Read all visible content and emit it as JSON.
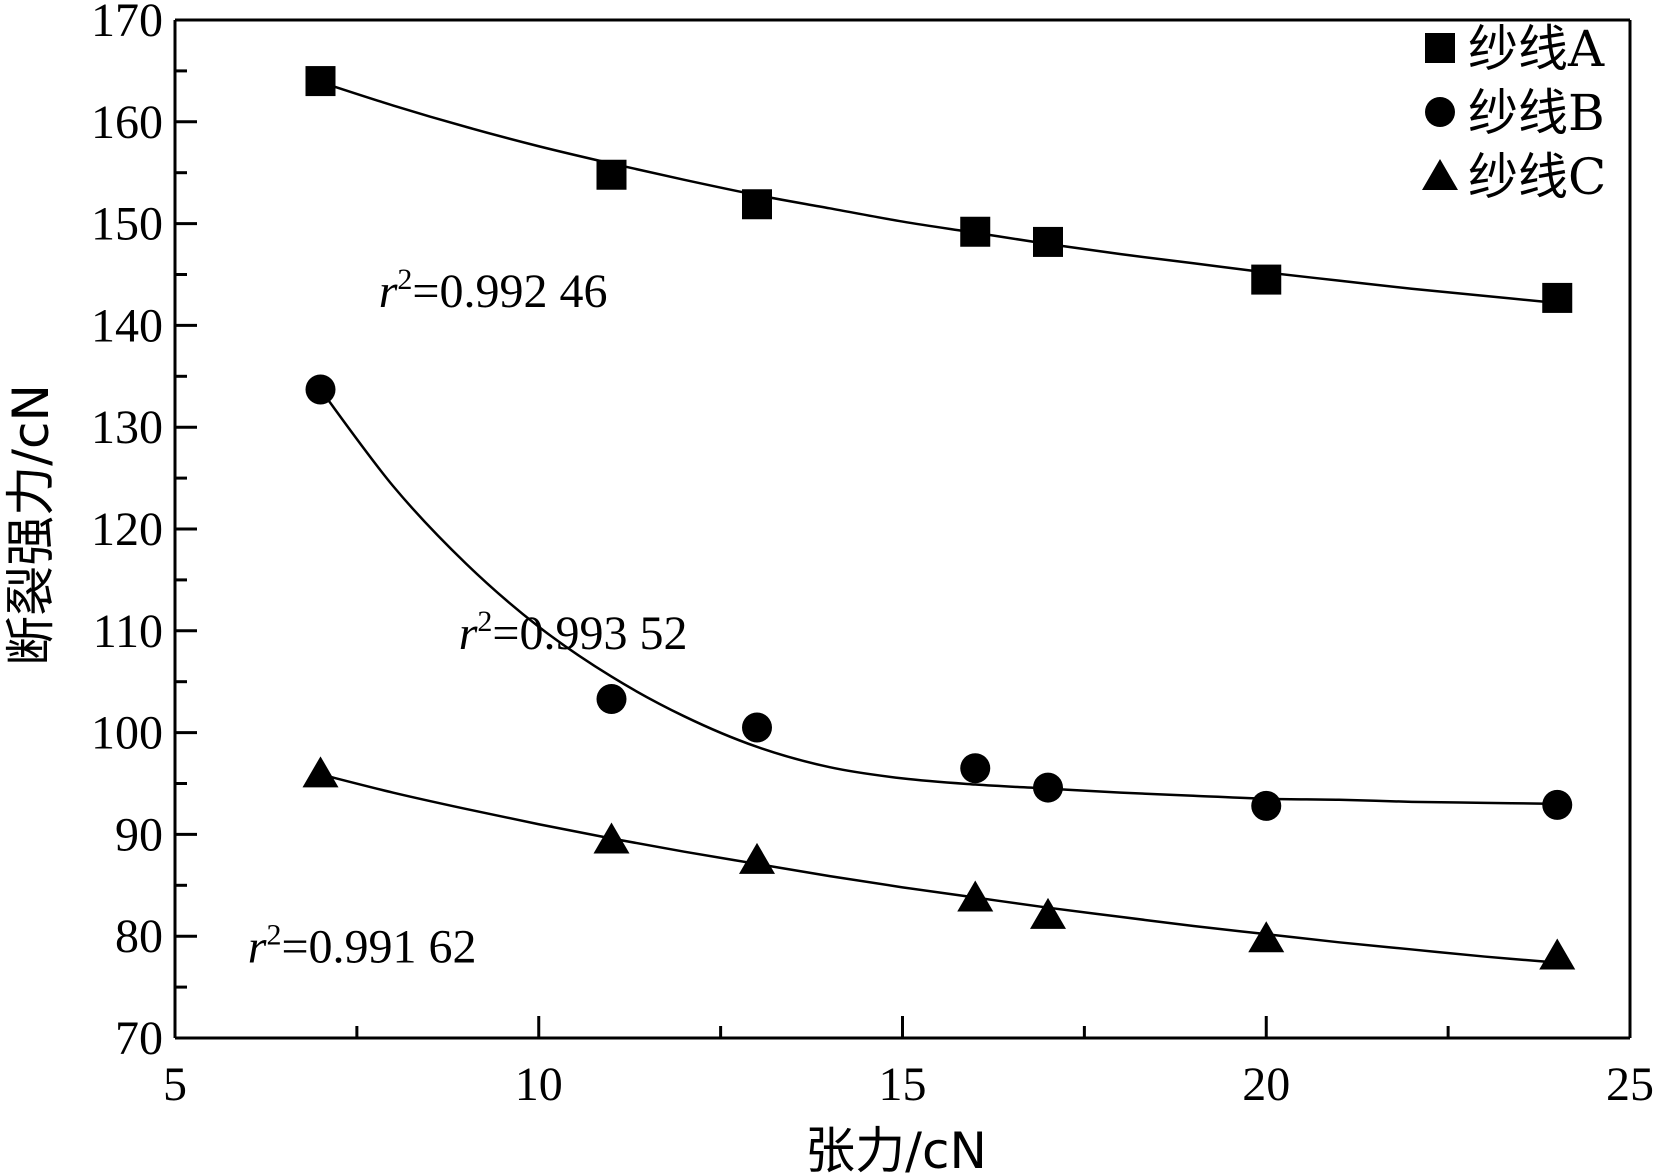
{
  "chart_data": {
    "type": "scatter",
    "xlabel": "张力/cN",
    "ylabel": "断裂强力/cN",
    "xlim": [
      5,
      25
    ],
    "ylim": [
      70,
      170
    ],
    "x_ticks": [
      5,
      10,
      15,
      20,
      25
    ],
    "y_ticks": [
      70,
      80,
      90,
      100,
      110,
      120,
      130,
      140,
      150,
      160,
      170
    ],
    "x": [
      7,
      11,
      13,
      16,
      17,
      20,
      24
    ],
    "grid": false,
    "legend_position": "top-right",
    "series": [
      {
        "name": "纱线A",
        "marker": "square",
        "values": [
          164.0,
          154.8,
          151.9,
          149.2,
          148.2,
          144.5,
          142.7
        ],
        "fit": [
          [
            7,
            163.9
          ],
          [
            8,
            161.6
          ],
          [
            9,
            159.5
          ],
          [
            10,
            157.6
          ],
          [
            11,
            155.9
          ],
          [
            12,
            154.3
          ],
          [
            13,
            152.8
          ],
          [
            14,
            151.5
          ],
          [
            15,
            150.2
          ],
          [
            16,
            149.1
          ],
          [
            17,
            148.0
          ],
          [
            18,
            147.0
          ],
          [
            19,
            146.1
          ],
          [
            20,
            145.2
          ],
          [
            21,
            144.4
          ],
          [
            22,
            143.6
          ],
          [
            23,
            142.9
          ],
          [
            24,
            142.2
          ]
        ],
        "r2_label": "0.992 46"
      },
      {
        "name": "纱线B",
        "marker": "circle",
        "values": [
          133.7,
          103.3,
          100.5,
          96.5,
          94.6,
          92.8,
          92.9
        ],
        "fit": [
          [
            7,
            133.7
          ],
          [
            8,
            124.2
          ],
          [
            9,
            116.6
          ],
          [
            10,
            110.4
          ],
          [
            11,
            105.5
          ],
          [
            12,
            101.6
          ],
          [
            13,
            98.6
          ],
          [
            14,
            96.6
          ],
          [
            15,
            95.5
          ],
          [
            16,
            94.9
          ],
          [
            17,
            94.5
          ],
          [
            18,
            94.1
          ],
          [
            19,
            93.8
          ],
          [
            20,
            93.5
          ],
          [
            21,
            93.4
          ],
          [
            22,
            93.2
          ],
          [
            23,
            93.1
          ],
          [
            24,
            93.0
          ]
        ],
        "r2_label": "0.993 52"
      },
      {
        "name": "纱线C",
        "marker": "triangle",
        "values": [
          96.0,
          89.5,
          87.5,
          83.8,
          82.1,
          79.8,
          78.1
        ],
        "fit": [
          [
            7,
            95.9
          ],
          [
            8,
            94.1
          ],
          [
            9,
            92.5
          ],
          [
            10,
            91.0
          ],
          [
            11,
            89.6
          ],
          [
            12,
            88.3
          ],
          [
            13,
            87.1
          ],
          [
            14,
            85.9
          ],
          [
            15,
            84.8
          ],
          [
            16,
            83.8
          ],
          [
            17,
            82.8
          ],
          [
            18,
            81.9
          ],
          [
            19,
            81.0
          ],
          [
            20,
            80.2
          ],
          [
            21,
            79.4
          ],
          [
            22,
            78.7
          ],
          [
            23,
            78.0
          ],
          [
            24,
            77.4
          ]
        ],
        "r2_label": "0.991 62"
      }
    ],
    "annotations": [
      {
        "prefix": "r",
        "sup": "2",
        "text": "=0.992 46",
        "x": 7.8,
        "y": 141.8
      },
      {
        "prefix": "r",
        "sup": "2",
        "text": "=0.993 52",
        "x": 8.9,
        "y": 108.2
      },
      {
        "prefix": "r",
        "sup": "2",
        "text": "=0.991 62",
        "x": 6.0,
        "y": 77.4
      }
    ]
  }
}
